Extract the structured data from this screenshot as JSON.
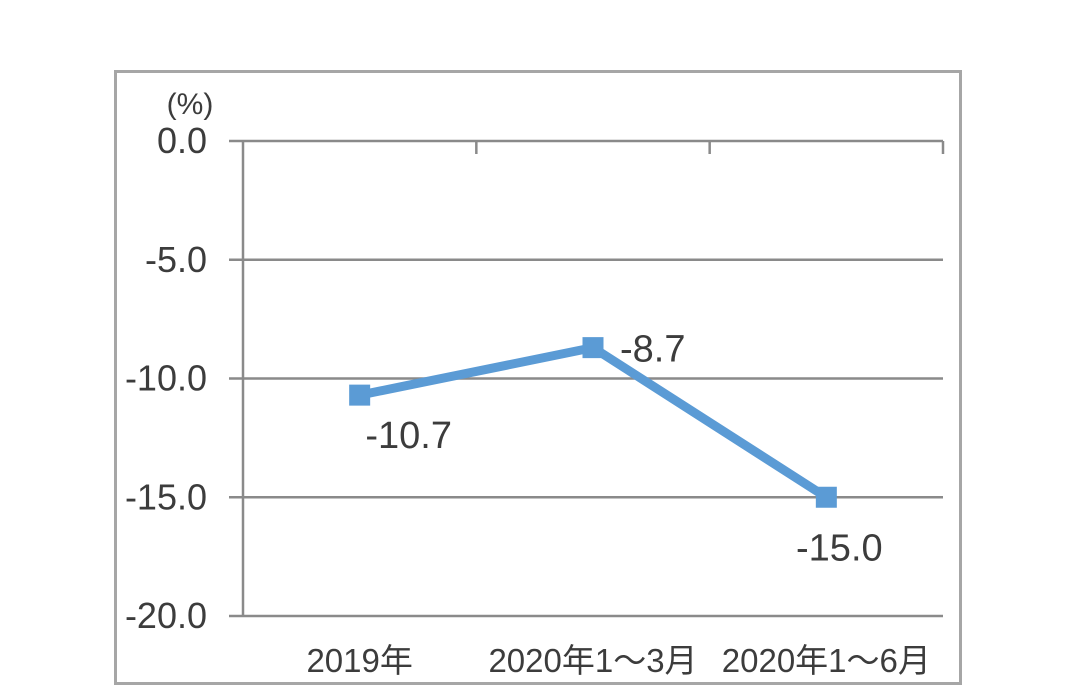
{
  "chart_data": {
    "type": "line",
    "title": "",
    "ylabel": "(%)",
    "xlabel": "",
    "categories": [
      "2019年",
      "2020年1～3月",
      "2020年1～6月"
    ],
    "values": [
      -10.7,
      -8.7,
      -15.0
    ],
    "data_labels": [
      "-10.7",
      "-8.7",
      "-15.0"
    ],
    "ytick_values": [
      0,
      -5,
      -10,
      -15,
      -20
    ],
    "ytick_labels": [
      "0.0",
      "-5.0",
      "-10.0",
      "-15.0",
      "-20.0"
    ],
    "ylim": [
      -20,
      0
    ],
    "grid": true,
    "legend": false,
    "marker": "square",
    "colors": {
      "line": "#5b9bd5",
      "marker": "#5b9bd5",
      "grid": "#8a8a8a",
      "axis": "#8a8a8a",
      "text": "#3c3c3c",
      "frame": "#a6a6a6",
      "background": "#ffffff"
    }
  }
}
